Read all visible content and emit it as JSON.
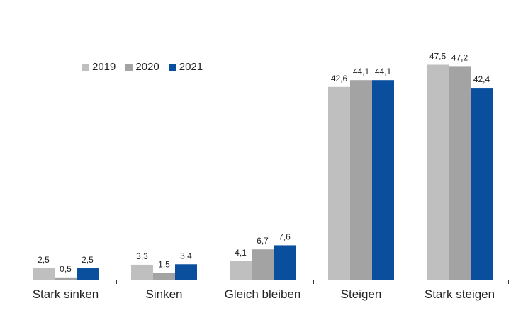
{
  "chart_data": {
    "type": "bar",
    "categories": [
      "Stark sinken",
      "Sinken",
      "Gleich bleiben",
      "Steigen",
      "Stark steigen"
    ],
    "series": [
      {
        "name": "2019",
        "color": "#bfbfbf",
        "values": [
          2.5,
          3.3,
          4.1,
          42.6,
          47.5
        ],
        "labels": [
          "2,5",
          "3,3",
          "4,1",
          "42,6",
          "47,5"
        ]
      },
      {
        "name": "2020",
        "color": "#a3a3a3",
        "values": [
          0.5,
          1.5,
          6.7,
          44.1,
          47.2
        ],
        "labels": [
          "0,5",
          "1,5",
          "6,7",
          "44,1",
          "47,2"
        ]
      },
      {
        "name": "2021",
        "color": "#0a4f9e",
        "values": [
          2.5,
          3.4,
          7.6,
          44.1,
          42.4
        ],
        "labels": [
          "2,5",
          "3,4",
          "7,6",
          "44,1",
          "42,4"
        ]
      }
    ],
    "ylim": [
      0,
      50
    ],
    "legend_position": "top-left",
    "grid": false
  }
}
